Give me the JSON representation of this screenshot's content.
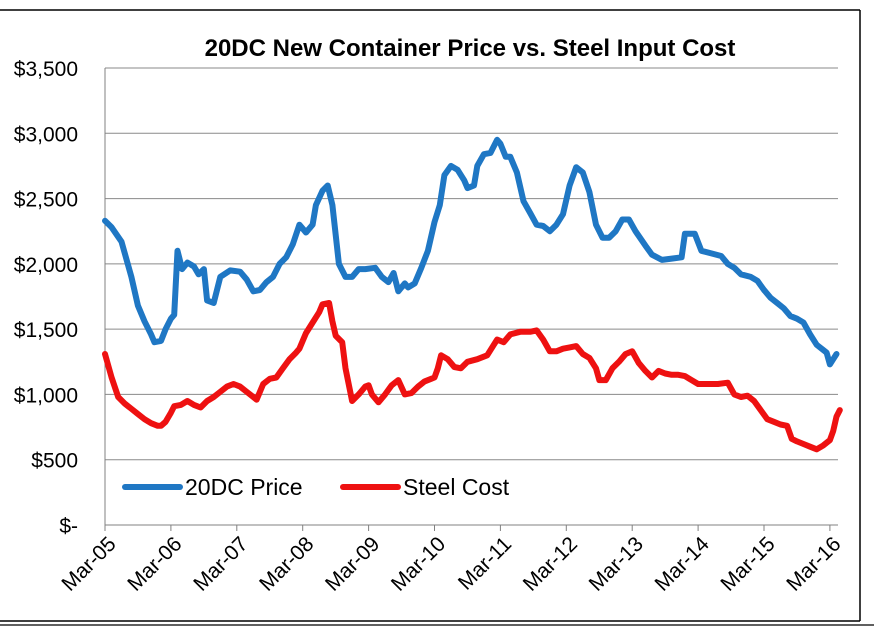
{
  "chart_data": {
    "type": "line",
    "title": "20DC New Container Price vs. Steel Input Cost",
    "xlabel": "",
    "ylabel": "",
    "x_ticks": [
      "Mar-05",
      "Mar-06",
      "Mar-07",
      "Mar-08",
      "Mar-09",
      "Mar-10",
      "Mar-11",
      "Mar-12",
      "Mar-13",
      "Mar-14",
      "Mar-15",
      "Mar-16"
    ],
    "y_ticks": [
      "$-",
      "$500",
      "$1,000",
      "$1,500",
      "$2,000",
      "$2,500",
      "$3,000",
      "$3,500"
    ],
    "ylim": [
      0,
      3500
    ],
    "xlim": [
      0,
      11.15
    ],
    "x_unit": "years since Mar-05",
    "grid": "horizontal",
    "legend_position": "bottom-left",
    "series": [
      {
        "name": "20DC Price",
        "color": "#1f77c4",
        "points": [
          [
            0,
            2330
          ],
          [
            0.1,
            2280
          ],
          [
            0.25,
            2170
          ],
          [
            0.4,
            1900
          ],
          [
            0.5,
            1680
          ],
          [
            0.6,
            1560
          ],
          [
            0.7,
            1460
          ],
          [
            0.75,
            1400
          ],
          [
            0.85,
            1410
          ],
          [
            0.92,
            1500
          ],
          [
            1.0,
            1580
          ],
          [
            1.05,
            1610
          ],
          [
            1.1,
            2100
          ],
          [
            1.17,
            1960
          ],
          [
            1.25,
            2010
          ],
          [
            1.35,
            1980
          ],
          [
            1.42,
            1920
          ],
          [
            1.5,
            1960
          ],
          [
            1.55,
            1720
          ],
          [
            1.65,
            1700
          ],
          [
            1.75,
            1900
          ],
          [
            1.9,
            1950
          ],
          [
            2.05,
            1940
          ],
          [
            2.15,
            1880
          ],
          [
            2.25,
            1790
          ],
          [
            2.35,
            1800
          ],
          [
            2.45,
            1860
          ],
          [
            2.55,
            1900
          ],
          [
            2.65,
            2000
          ],
          [
            2.75,
            2050
          ],
          [
            2.85,
            2150
          ],
          [
            2.95,
            2300
          ],
          [
            3.05,
            2240
          ],
          [
            3.15,
            2300
          ],
          [
            3.2,
            2450
          ],
          [
            3.3,
            2560
          ],
          [
            3.38,
            2600
          ],
          [
            3.45,
            2450
          ],
          [
            3.55,
            2000
          ],
          [
            3.65,
            1900
          ],
          [
            3.75,
            1900
          ],
          [
            3.85,
            1960
          ],
          [
            3.95,
            1960
          ],
          [
            4.1,
            1970
          ],
          [
            4.2,
            1900
          ],
          [
            4.3,
            1860
          ],
          [
            4.38,
            1930
          ],
          [
            4.45,
            1790
          ],
          [
            4.55,
            1850
          ],
          [
            4.6,
            1820
          ],
          [
            4.7,
            1850
          ],
          [
            4.8,
            1970
          ],
          [
            4.9,
            2100
          ],
          [
            5.0,
            2320
          ],
          [
            5.08,
            2450
          ],
          [
            5.15,
            2680
          ],
          [
            5.25,
            2750
          ],
          [
            5.35,
            2720
          ],
          [
            5.45,
            2640
          ],
          [
            5.5,
            2580
          ],
          [
            5.6,
            2600
          ],
          [
            5.65,
            2750
          ],
          [
            5.75,
            2840
          ],
          [
            5.85,
            2850
          ],
          [
            5.95,
            2950
          ],
          [
            6.0,
            2920
          ],
          [
            6.08,
            2820
          ],
          [
            6.15,
            2820
          ],
          [
            6.25,
            2700
          ],
          [
            6.35,
            2480
          ],
          [
            6.45,
            2390
          ],
          [
            6.55,
            2300
          ],
          [
            6.65,
            2290
          ],
          [
            6.75,
            2250
          ],
          [
            6.85,
            2300
          ],
          [
            6.95,
            2380
          ],
          [
            7.05,
            2600
          ],
          [
            7.15,
            2740
          ],
          [
            7.25,
            2700
          ],
          [
            7.35,
            2550
          ],
          [
            7.45,
            2300
          ],
          [
            7.55,
            2200
          ],
          [
            7.65,
            2200
          ],
          [
            7.75,
            2250
          ],
          [
            7.85,
            2340
          ],
          [
            7.95,
            2340
          ],
          [
            8.05,
            2250
          ],
          [
            8.2,
            2140
          ],
          [
            8.3,
            2070
          ],
          [
            8.45,
            2030
          ],
          [
            8.6,
            2040
          ],
          [
            8.75,
            2050
          ],
          [
            8.8,
            2230
          ],
          [
            8.95,
            2230
          ],
          [
            9.05,
            2100
          ],
          [
            9.2,
            2080
          ],
          [
            9.35,
            2060
          ],
          [
            9.45,
            2000
          ],
          [
            9.55,
            1970
          ],
          [
            9.65,
            1920
          ],
          [
            9.8,
            1900
          ],
          [
            9.9,
            1870
          ],
          [
            10.0,
            1800
          ],
          [
            10.1,
            1740
          ],
          [
            10.2,
            1700
          ],
          [
            10.3,
            1660
          ],
          [
            10.4,
            1600
          ],
          [
            10.5,
            1580
          ],
          [
            10.6,
            1550
          ],
          [
            10.7,
            1460
          ],
          [
            10.8,
            1380
          ],
          [
            10.9,
            1340
          ],
          [
            10.95,
            1320
          ],
          [
            11.0,
            1230
          ],
          [
            11.05,
            1270
          ],
          [
            11.1,
            1310
          ]
        ]
      },
      {
        "name": "Steel Cost",
        "color": "#ee1111",
        "points": [
          [
            0,
            1310
          ],
          [
            0.1,
            1130
          ],
          [
            0.2,
            980
          ],
          [
            0.3,
            930
          ],
          [
            0.4,
            890
          ],
          [
            0.5,
            850
          ],
          [
            0.6,
            810
          ],
          [
            0.7,
            780
          ],
          [
            0.8,
            760
          ],
          [
            0.85,
            760
          ],
          [
            0.92,
            790
          ],
          [
            1.0,
            860
          ],
          [
            1.05,
            910
          ],
          [
            1.15,
            920
          ],
          [
            1.25,
            950
          ],
          [
            1.35,
            920
          ],
          [
            1.45,
            900
          ],
          [
            1.55,
            950
          ],
          [
            1.65,
            980
          ],
          [
            1.75,
            1020
          ],
          [
            1.85,
            1060
          ],
          [
            1.95,
            1080
          ],
          [
            2.05,
            1060
          ],
          [
            2.15,
            1020
          ],
          [
            2.25,
            980
          ],
          [
            2.3,
            960
          ],
          [
            2.4,
            1080
          ],
          [
            2.5,
            1120
          ],
          [
            2.6,
            1130
          ],
          [
            2.7,
            1200
          ],
          [
            2.8,
            1270
          ],
          [
            2.9,
            1320
          ],
          [
            2.95,
            1350
          ],
          [
            3.05,
            1470
          ],
          [
            3.15,
            1550
          ],
          [
            3.25,
            1630
          ],
          [
            3.3,
            1690
          ],
          [
            3.4,
            1700
          ],
          [
            3.45,
            1560
          ],
          [
            3.5,
            1450
          ],
          [
            3.6,
            1400
          ],
          [
            3.65,
            1200
          ],
          [
            3.75,
            950
          ],
          [
            3.85,
            1000
          ],
          [
            3.95,
            1060
          ],
          [
            4.0,
            1070
          ],
          [
            4.05,
            1000
          ],
          [
            4.15,
            940
          ],
          [
            4.25,
            1000
          ],
          [
            4.35,
            1070
          ],
          [
            4.45,
            1110
          ],
          [
            4.55,
            1000
          ],
          [
            4.65,
            1010
          ],
          [
            4.75,
            1060
          ],
          [
            4.85,
            1100
          ],
          [
            4.95,
            1120
          ],
          [
            5.0,
            1130
          ],
          [
            5.05,
            1200
          ],
          [
            5.1,
            1300
          ],
          [
            5.2,
            1270
          ],
          [
            5.3,
            1210
          ],
          [
            5.4,
            1200
          ],
          [
            5.5,
            1250
          ],
          [
            5.65,
            1270
          ],
          [
            5.8,
            1300
          ],
          [
            5.9,
            1380
          ],
          [
            5.95,
            1420
          ],
          [
            6.05,
            1400
          ],
          [
            6.15,
            1460
          ],
          [
            6.3,
            1480
          ],
          [
            6.45,
            1480
          ],
          [
            6.55,
            1490
          ],
          [
            6.65,
            1420
          ],
          [
            6.75,
            1330
          ],
          [
            6.85,
            1330
          ],
          [
            6.95,
            1350
          ],
          [
            7.05,
            1360
          ],
          [
            7.15,
            1370
          ],
          [
            7.25,
            1310
          ],
          [
            7.35,
            1280
          ],
          [
            7.45,
            1200
          ],
          [
            7.5,
            1110
          ],
          [
            7.6,
            1110
          ],
          [
            7.7,
            1200
          ],
          [
            7.8,
            1250
          ],
          [
            7.9,
            1310
          ],
          [
            8.0,
            1330
          ],
          [
            8.1,
            1240
          ],
          [
            8.2,
            1180
          ],
          [
            8.3,
            1130
          ],
          [
            8.4,
            1180
          ],
          [
            8.5,
            1160
          ],
          [
            8.6,
            1150
          ],
          [
            8.7,
            1150
          ],
          [
            8.8,
            1140
          ],
          [
            8.9,
            1110
          ],
          [
            9.0,
            1080
          ],
          [
            9.1,
            1080
          ],
          [
            9.2,
            1080
          ],
          [
            9.3,
            1080
          ],
          [
            9.45,
            1090
          ],
          [
            9.55,
            1000
          ],
          [
            9.65,
            980
          ],
          [
            9.75,
            990
          ],
          [
            9.85,
            950
          ],
          [
            9.95,
            880
          ],
          [
            10.05,
            810
          ],
          [
            10.15,
            790
          ],
          [
            10.25,
            770
          ],
          [
            10.35,
            760
          ],
          [
            10.42,
            660
          ],
          [
            10.5,
            640
          ],
          [
            10.6,
            620
          ],
          [
            10.7,
            600
          ],
          [
            10.8,
            580
          ],
          [
            10.9,
            610
          ],
          [
            11.0,
            650
          ],
          [
            11.05,
            720
          ],
          [
            11.1,
            830
          ],
          [
            11.15,
            880
          ]
        ]
      }
    ]
  }
}
